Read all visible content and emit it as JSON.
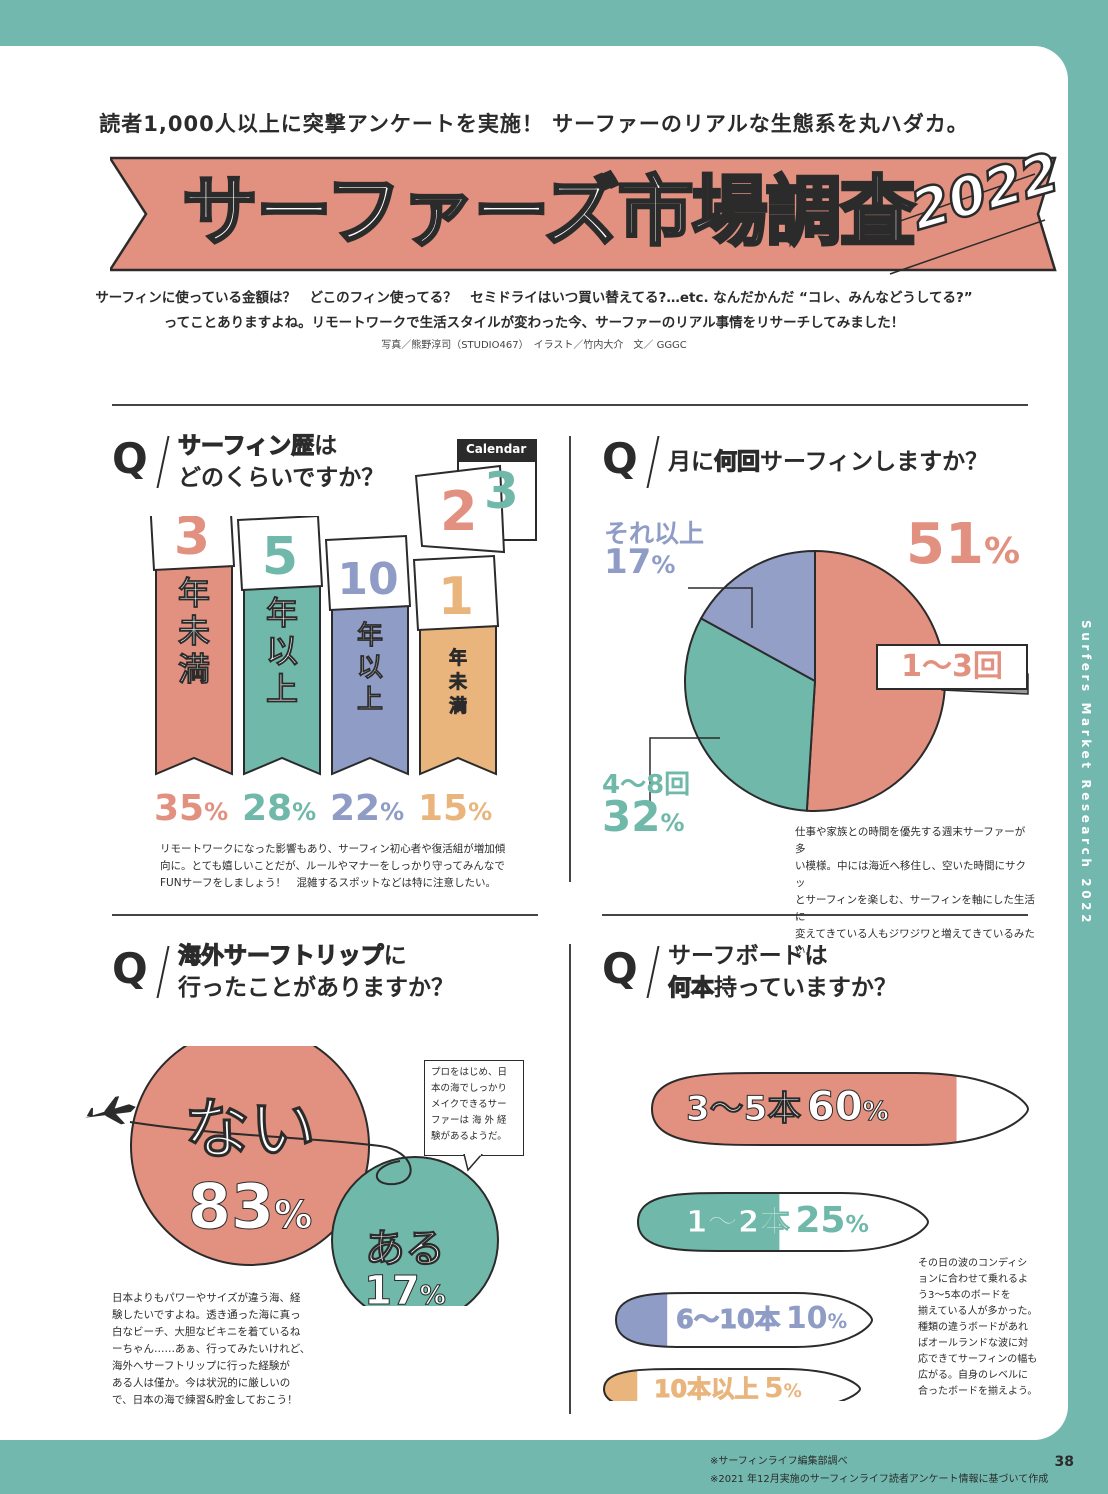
{
  "header": {
    "lead": "読者1,000人以上に突撃アンケートを実施！ サーファーのリアルな生態系を丸ハダカ。",
    "title_main": "サーファーズ市場調査",
    "title_year": "2022",
    "intro_line1": "サーフィンに使っている金額は？　どこのフィン使ってる？　セミドライはいつ買い替えてる?…etc. なんだかんだ “コレ、みんなどうしてる?”",
    "intro_line2": "ってことありますよね。リモートワークで生活スタイルが変わった今、サーファーのリアル事情をリサーチしてみました！",
    "credit": "写真／熊野淳司（STUDIO467）　イラスト／竹内大介　文／ GGGC"
  },
  "q1": {
    "q": "Q",
    "title_hl": "サーフィン歴",
    "title_rest1": "は",
    "title_rest2": "どのくらいですか？",
    "calendar_label": "Calendar",
    "calendar_front": "2",
    "calendar_back": "3",
    "items": [
      {
        "num": "3",
        "label": "年未満",
        "pct": "35",
        "color": "#e2907f"
      },
      {
        "num": "5",
        "label": "年以上",
        "pct": "28",
        "color": "#6fb8aa"
      },
      {
        "num": "10",
        "label": "年以上",
        "pct": "22",
        "color": "#8f9cc6"
      },
      {
        "num": "1",
        "label": "年未満",
        "pct": "15",
        "color": "#eab57d"
      }
    ],
    "pct_sign": "%",
    "body": [
      "リモートワークになった影響もあり、サーフィン初心者や復活組が増加傾",
      "向に。とても嬉しいことだが、ルールやマナーをしっかり守ってみんなで",
      "FUNサーフをしましょう！　混雑するスポットなどは特に注意したい。"
    ]
  },
  "q2": {
    "q": "Q",
    "title_pre": "月に",
    "title_hl": "何回",
    "title_post": "サーフィンしますか？",
    "slices": [
      {
        "label": "1〜3回",
        "pct": "51",
        "value": 51,
        "color": "#e2907f"
      },
      {
        "label": "4〜8回",
        "pct": "32",
        "value": 32,
        "color": "#6fb8aa"
      },
      {
        "label": "それ以上",
        "pct": "17",
        "value": 17,
        "color": "#949fc7"
      }
    ],
    "pct_sign": "%",
    "body": [
      "仕事や家族との時間を優先する週末サーファーが多",
      "い模様。中には海近へ移住し、空いた時間にサクッ",
      "とサーフィンを楽しむ、サーフィンを軸にした生活に",
      "変えてきている人もジワジワと増えてきているみたい。"
    ]
  },
  "q3": {
    "q": "Q",
    "title_hl": "海外サーフトリップ",
    "title_rest1": "に",
    "title_rest2": "行ったことがありますか？",
    "no_label": "ない",
    "no_pct": "83",
    "yes_label": "ある",
    "yes_pct": "17",
    "pct_sign": "%",
    "bubble": [
      "プロをはじめ、日",
      "本の海でしっかり",
      "メイクできるサー",
      "ファーは 海 外 経",
      "験があるようだ。"
    ],
    "body": [
      "日本よりもパワーやサイズが違う海、経",
      "験したいですよね。透き通った海に真っ",
      "白なビーチ、大胆なビキニを着ているね",
      "ーちゃん……あぁ、行ってみたいけれど、",
      "海外へサーフトリップに行った経験が",
      "ある人は僅か。今は状況的に厳しいの",
      "で、日本の海で練習&貯金しておこう！"
    ]
  },
  "q4": {
    "q": "Q",
    "title_line1": "サーフボードは",
    "title_hl": "何本",
    "title_post": "持っていますか？",
    "boards": [
      {
        "label": "3〜5本",
        "pct": "60",
        "value": 60,
        "color": "#e2907f"
      },
      {
        "label": "1〜2本",
        "pct": "25",
        "value": 25,
        "color": "#6fb8aa"
      },
      {
        "label": "6〜10本",
        "pct": "10",
        "value": 10,
        "color": "#8f9cc6"
      },
      {
        "label": "10本以上",
        "pct": "5",
        "value": 5,
        "color": "#eab57d"
      }
    ],
    "pct_sign": "%",
    "body": [
      "その日の波のコンディシ",
      "ョンに合わせて乗れるよ",
      "う3～5本のボードを",
      "揃えている人が多かった。",
      "種類の違うボードがあれ",
      "ばオールランドな波に対",
      "応できてサーフィンの幅も",
      "広がる。自身のレベルに",
      "合ったボードを揃えよう。"
    ]
  },
  "side_text": "Surfers Market Research 2022",
  "footer": {
    "note1": "※サーフィンライフ編集部調べ",
    "note2": "※2021 年12月実施のサーフィンライフ読者アンケート情報に基づいて作成",
    "page": "38"
  }
}
